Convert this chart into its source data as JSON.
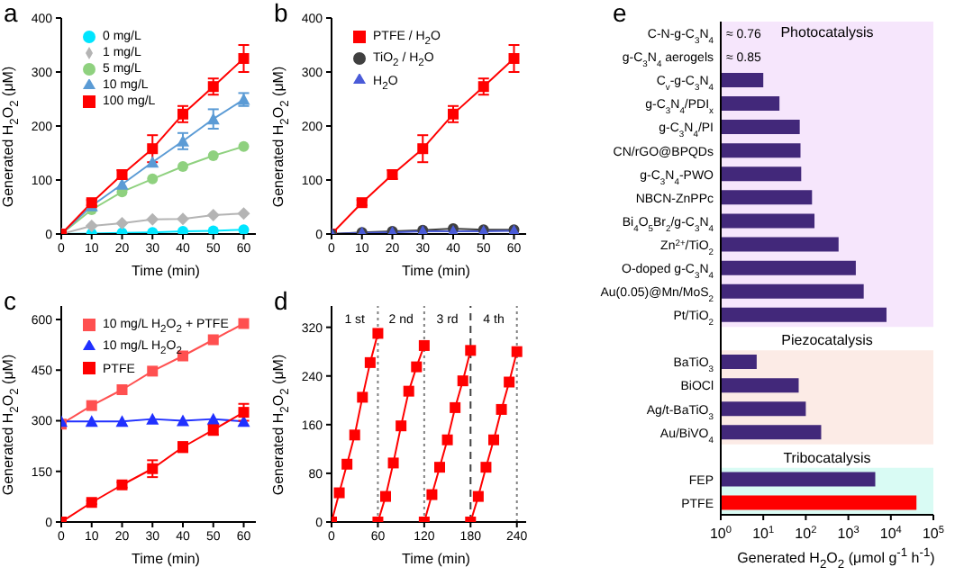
{
  "chart_data": [
    {
      "type": "line",
      "title": "a",
      "xlabel": "Time (min)",
      "ylabel": "Generated H$_{2}$O$_{2}$ (μM)",
      "x": [
        0,
        10,
        20,
        30,
        40,
        50,
        60
      ],
      "xlim": [
        0,
        64
      ],
      "xticks": [
        0,
        10,
        20,
        30,
        40,
        50,
        60
      ],
      "ylim": [
        0,
        400
      ],
      "yticks": [
        0,
        100,
        200,
        300,
        400
      ],
      "legend": "top left",
      "series": [
        {
          "name": "0 mg/L",
          "color": "#00e5ff",
          "marker": "circle",
          "values": [
            0,
            1,
            2,
            3,
            5,
            6,
            8
          ]
        },
        {
          "name": "1 mg/L",
          "color": "#b4b4b4",
          "marker": "diamond",
          "values": [
            0,
            15,
            20,
            27,
            28,
            35,
            38
          ]
        },
        {
          "name": "5 mg/L",
          "color": "#8fd17f",
          "marker": "circle",
          "values": [
            0,
            45,
            78,
            102,
            125,
            145,
            162
          ]
        },
        {
          "name": "10 mg/L",
          "color": "#5b9bd5",
          "marker": "triangle",
          "values": [
            0,
            52,
            92,
            133,
            172,
            213,
            249
          ],
          "errors": [
            null,
            null,
            null,
            null,
            15,
            18,
            12
          ]
        },
        {
          "name": "100 mg/L",
          "color": "#ff0000",
          "marker": "square",
          "values": [
            0,
            58,
            110,
            158,
            222,
            273,
            325
          ],
          "errors": [
            null,
            5,
            8,
            25,
            15,
            15,
            25
          ]
        }
      ]
    },
    {
      "type": "line",
      "title": "b",
      "xlabel": "Time (min)",
      "ylabel": "Generated H$_{2}$O$_{2}$ (μM)",
      "x": [
        0,
        10,
        20,
        30,
        40,
        50,
        60
      ],
      "xlim": [
        0,
        64
      ],
      "xticks": [
        0,
        10,
        20,
        30,
        40,
        50,
        60
      ],
      "ylim": [
        0,
        400
      ],
      "yticks": [
        0,
        100,
        200,
        300,
        400
      ],
      "legend": "top left",
      "series": [
        {
          "name": "PTFE / H$_{2}$O",
          "color": "#ff0000",
          "marker": "square",
          "values": [
            0,
            58,
            110,
            158,
            222,
            273,
            325
          ],
          "errors": [
            null,
            5,
            8,
            25,
            15,
            15,
            25
          ]
        },
        {
          "name": "TiO$_{2}$ / H$_{2}$O",
          "color": "#404040",
          "marker": "circle",
          "values": [
            0,
            3,
            5,
            7,
            10,
            8,
            8
          ]
        },
        {
          "name": "H$_{2}$O",
          "color": "#4a5bd8",
          "marker": "triangle",
          "values": [
            0,
            2,
            3,
            5,
            5,
            5,
            6
          ]
        }
      ]
    },
    {
      "type": "line",
      "title": "c",
      "xlabel": "Time (min)",
      "ylabel": "Generated H$_{2}$O$_{2}$ (μM)",
      "x": [
        0,
        10,
        20,
        30,
        40,
        50,
        60
      ],
      "xlim": [
        0,
        64
      ],
      "xticks": [
        0,
        10,
        20,
        30,
        40,
        50,
        60
      ],
      "ylim": [
        0,
        640
      ],
      "yticks": [
        0,
        150,
        300,
        450,
        600
      ],
      "legend": "top left",
      "series": [
        {
          "name": "10 mg/L H$_{2}$O$_{2}$ + PTFE",
          "color": "#ff5050",
          "marker": "square",
          "values": [
            290,
            345,
            392,
            447,
            492,
            540,
            588
          ]
        },
        {
          "name": "10 mg/L H$_{2}$O$_{2}$",
          "color": "#2030ff",
          "marker": "triangle",
          "values": [
            298,
            298,
            298,
            305,
            300,
            305,
            298
          ]
        },
        {
          "name": "PTFE",
          "color": "#ff0000",
          "marker": "square",
          "values": [
            0,
            58,
            110,
            158,
            222,
            273,
            325
          ],
          "errors": [
            null,
            5,
            8,
            25,
            15,
            15,
            25
          ]
        }
      ]
    },
    {
      "type": "line",
      "title": "d",
      "xlabel": "Time (min)",
      "ylabel": "Generated H$_{2}$O$_{2}$ (μM)",
      "xlim": [
        0,
        252
      ],
      "xticks": [
        0,
        60,
        120,
        180,
        240
      ],
      "ylim": [
        0,
        355
      ],
      "yticks": [
        0,
        80,
        160,
        240,
        320
      ],
      "series": [
        {
          "color": "#ff0000",
          "marker": "square",
          "x": [
            0,
            10,
            20,
            30,
            40,
            50,
            60
          ],
          "values": [
            0,
            48,
            95,
            143,
            205,
            262,
            310
          ]
        },
        {
          "color": "#ff0000",
          "marker": "square",
          "x": [
            60,
            70,
            80,
            90,
            100,
            110,
            120
          ],
          "values": [
            0,
            42,
            97,
            158,
            215,
            255,
            290
          ]
        },
        {
          "color": "#ff0000",
          "marker": "square",
          "x": [
            120,
            130,
            140,
            150,
            160,
            170,
            180
          ],
          "values": [
            0,
            45,
            90,
            135,
            188,
            232,
            282
          ]
        },
        {
          "color": "#ff0000",
          "marker": "square",
          "x": [
            180,
            190,
            200,
            210,
            220,
            230,
            240
          ],
          "values": [
            0,
            42,
            90,
            135,
            185,
            230,
            280
          ]
        }
      ],
      "ref_lines": [
        {
          "axis": "x",
          "value": 60,
          "color": "#808080",
          "line_style": "dotted"
        },
        {
          "axis": "x",
          "value": 120,
          "color": "#808080",
          "line_style": "dotted"
        },
        {
          "axis": "x",
          "value": 180,
          "color": "#404040",
          "line_style": "dashed"
        },
        {
          "axis": "x",
          "value": 240,
          "color": "#808080",
          "line_style": "dotted"
        }
      ],
      "annotations": [
        "1 st",
        "2 nd",
        "3 rd",
        "4 th"
      ]
    },
    {
      "type": "bar",
      "orientation": "horizontal",
      "title": "e",
      "xlabel": "Generated H$_{2}$O$_{2}$ (μmol g$^{-1}$ h$^{-1}$)",
      "log": "x",
      "xlim": [
        1,
        100000
      ],
      "xticks": [
        {
          "value": 1,
          "label": "10$^{0}$"
        },
        {
          "value": 10,
          "label": "10$^{1}$"
        },
        {
          "value": 100,
          "label": "10$^{2}$"
        },
        {
          "value": 1000,
          "label": "10$^{3}$"
        },
        {
          "value": 10000,
          "label": "10$^{4}$"
        },
        {
          "value": 100000,
          "label": "10$^{5}$"
        }
      ],
      "categories": [
        "C-N-g-C$_{3}$N$_{4}$",
        "g-C$_{3}$N$_{4}$ aerogels",
        "C$_{v}$-g-C$_{3}$N$_{4}$",
        "g-C$_{3}$N$_{4}$/PDI$_{x}$",
        "g-C$_{3}$N$_{4}$/PI",
        "CN/rGO@BPQDs",
        "g-C$_{3}$N$_{4}$-PWO",
        "NBCN-ZnPPc",
        "Bi$_{4}$O$_{5}$Br$_{2}$/g-C$_{3}$N$_{4}$",
        "Zn$^{2+}$/TiO$_{2}$",
        "O-doped g-C$_{3}$N$_{4}$",
        "Au(0.05)@Mn/MoS$_{2}$",
        "Pt/TiO$_{2}$",
        null,
        "BaTiO$_{3}$",
        "BiOCl",
        "Ag/t-BaTiO$_{3}$",
        "Au/BiVO$_{4}$",
        null,
        "FEP",
        "PTFE"
      ],
      "values": [
        null,
        null,
        10,
        24,
        72,
        75,
        78,
        140,
        160,
        590,
        1500,
        2300,
        7900,
        null,
        7,
        68,
        100,
        230,
        null,
        4300,
        40000
      ],
      "value_labels": [
        "≈ 0.76",
        "≈ 0.85",
        null,
        null,
        null,
        null,
        null,
        null,
        null,
        null,
        null,
        null,
        null,
        null,
        null,
        null,
        null,
        null,
        null,
        null,
        null
      ],
      "colors": [
        "#42287a",
        "#42287a",
        "#42287a",
        "#42287a",
        "#42287a",
        "#42287a",
        "#42287a",
        "#42287a",
        "#42287a",
        "#42287a",
        "#42287a",
        "#42287a",
        "#42287a",
        "#42287a",
        "#42287a",
        "#42287a",
        "#42287a",
        "#42287a",
        "#42287a",
        "#42287a",
        "#ff0000"
      ],
      "bands": [
        {
          "axis": "y",
          "from": "C-N-g-C$_{3}$N$_{4}$",
          "to": "Pt/TiO$_{2}$",
          "label": "Photocatalysis",
          "color": "#f6e6fc"
        },
        {
          "axis": "y",
          "from": "BaTiO$_{3}$",
          "to": "Au/BiVO$_{4}$",
          "label": "Piezocatalysis",
          "color": "#fcebe6"
        },
        {
          "axis": "y",
          "from": "FEP",
          "to": "PTFE",
          "label": "Tribocatalysis",
          "color": "#d9fbf4"
        }
      ]
    }
  ]
}
